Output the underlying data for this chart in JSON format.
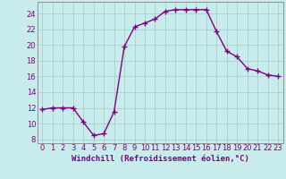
{
  "x": [
    0,
    1,
    2,
    3,
    4,
    5,
    6,
    7,
    8,
    9,
    10,
    11,
    12,
    13,
    14,
    15,
    16,
    17,
    18,
    19,
    20,
    21,
    22,
    23
  ],
  "y": [
    11.8,
    12.0,
    12.0,
    12.0,
    10.2,
    8.5,
    8.7,
    11.5,
    19.8,
    22.3,
    22.8,
    23.3,
    24.3,
    24.5,
    24.5,
    24.5,
    24.5,
    21.7,
    19.2,
    18.5,
    17.0,
    16.7,
    16.2,
    16.0
  ],
  "line_color": "#800080",
  "marker": "+",
  "marker_size": 4,
  "linewidth": 1.0,
  "xlabel": "Windchill (Refroidissement éolien,°C)",
  "xlim": [
    -0.5,
    23.5
  ],
  "ylim": [
    7.5,
    25.5
  ],
  "yticks": [
    8,
    10,
    12,
    14,
    16,
    18,
    20,
    22,
    24
  ],
  "xticks": [
    0,
    1,
    2,
    3,
    4,
    5,
    6,
    7,
    8,
    9,
    10,
    11,
    12,
    13,
    14,
    15,
    16,
    17,
    18,
    19,
    20,
    21,
    22,
    23
  ],
  "background_color": "#c8ecec",
  "grid_color": "#aacccc",
  "tick_color": "#800080",
  "label_color": "#800080",
  "font_size_xlabel": 6.5,
  "font_size_ticks": 6.0
}
